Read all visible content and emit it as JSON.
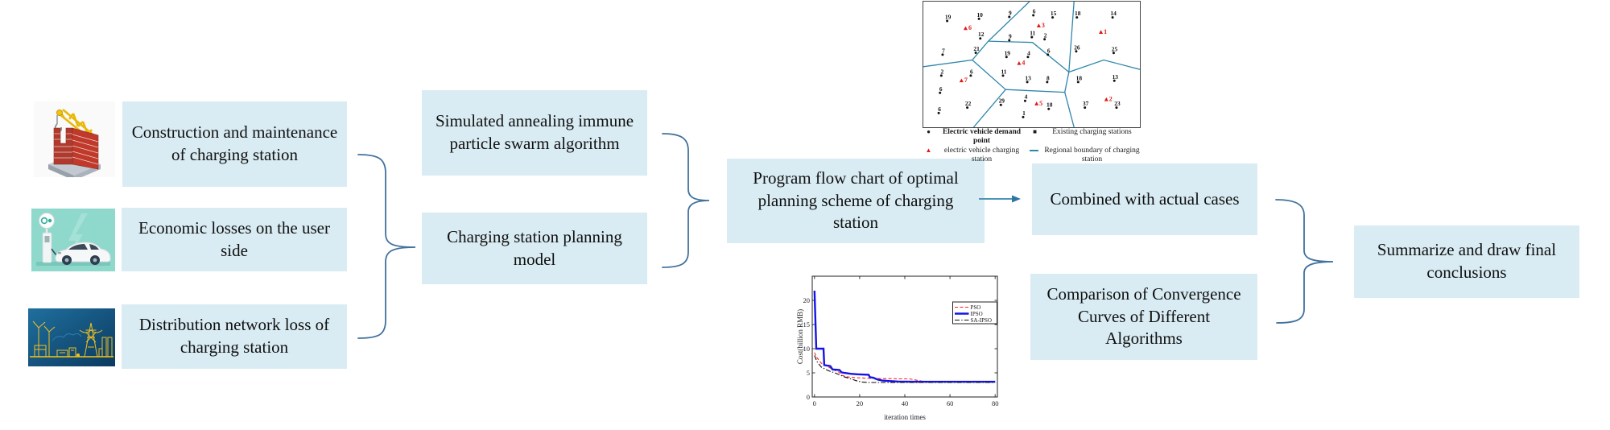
{
  "flow": {
    "construction": "Construction and maintenance of charging station",
    "economic": "Economic losses on the user side",
    "distribution": "Distribution network loss of charging station",
    "algorithm": "Simulated annealing immune particle swarm algorithm",
    "model": "Charging station planning model",
    "program": "Program flow chart of optimal planning scheme of charging station",
    "cases": "Combined with actual cases",
    "comparison": "Comparison of Convergence Curves of Different Algorithms",
    "summarize": "Summarize and draw final conclusions"
  },
  "colors": {
    "box_fill": "#d9ecf3",
    "brace": "#41719c",
    "arrow": "#4d94bb",
    "map_boundary": "#2e86ab",
    "station_red": "#e01818",
    "demand_black": "#111111"
  },
  "map": {
    "legend": {
      "demand": "Electric vehicle demand point",
      "existing": "Existing charging stations",
      "station": "electric vehicle charging station",
      "boundary": "Regional boundary of charging station",
      "markers": {
        "demand": "●",
        "existing": "■",
        "station": "▲"
      }
    },
    "demand_points": [
      [
        11.0,
        15.4,
        "19"
      ],
      [
        25.7,
        13.7,
        "10"
      ],
      [
        39.7,
        12.2,
        "9"
      ],
      [
        50.8,
        10.9,
        "6"
      ],
      [
        59.7,
        12.6,
        "15"
      ],
      [
        70.9,
        12.6,
        "18"
      ],
      [
        87.4,
        12.6,
        "14"
      ],
      [
        26.3,
        29.3,
        "12"
      ],
      [
        39.7,
        30.8,
        "9"
      ],
      [
        50.1,
        28.3,
        "11"
      ],
      [
        56.0,
        30.0,
        "2"
      ],
      [
        8.9,
        42.2,
        "7"
      ],
      [
        24.2,
        40.7,
        "21"
      ],
      [
        38.4,
        44.1,
        "19"
      ],
      [
        48.3,
        44.1,
        "4"
      ],
      [
        57.5,
        42.2,
        "6"
      ],
      [
        70.6,
        39.6,
        "26"
      ],
      [
        87.9,
        40.9,
        "25"
      ],
      [
        8.3,
        58.9,
        "2"
      ],
      [
        21.9,
        58.9,
        "6"
      ],
      [
        36.8,
        58.9,
        "11"
      ],
      [
        48.0,
        64.0,
        "13"
      ],
      [
        57.2,
        64.0,
        "8"
      ],
      [
        71.5,
        64.0,
        "18"
      ],
      [
        88.2,
        63.0,
        "13"
      ],
      [
        7.7,
        72.6,
        "6"
      ],
      [
        20.3,
        84.4,
        "22"
      ],
      [
        35.8,
        82.2,
        "29"
      ],
      [
        47.0,
        79.0,
        "4"
      ],
      [
        57.9,
        85.4,
        "18"
      ],
      [
        74.6,
        84.4,
        "37"
      ],
      [
        89.2,
        84.4,
        "23"
      ],
      [
        7.1,
        88.7,
        "6"
      ],
      [
        46.1,
        91.9,
        "1"
      ]
    ],
    "charging_stations": [
      [
        19.5,
        21.4,
        "6"
      ],
      [
        53.3,
        19.3,
        "3"
      ],
      [
        82.0,
        24.4,
        "1"
      ],
      [
        44.2,
        49.2,
        "4"
      ],
      [
        17.6,
        63.0,
        "7"
      ],
      [
        52.3,
        81.4,
        "5"
      ],
      [
        84.5,
        78.0,
        "2"
      ]
    ],
    "boundaries": [
      [
        [
          49,
          0
        ],
        [
          30,
          31.5
        ],
        [
          22.6,
          46.5
        ],
        [
          0,
          51.8
        ]
      ],
      [
        [
          30,
          31.5
        ],
        [
          50.4,
          32.5
        ],
        [
          67.2,
          56.1
        ]
      ],
      [
        [
          22.6,
          46.5
        ],
        [
          38.0,
          70.0
        ]
      ],
      [
        [
          38.0,
          70.0
        ],
        [
          23.2,
          100
        ]
      ],
      [
        [
          38.0,
          70.0
        ],
        [
          65.3,
          72.2
        ]
      ],
      [
        [
          65.3,
          72.2
        ],
        [
          69.6,
          100
        ]
      ],
      [
        [
          65.3,
          72.2
        ],
        [
          67.2,
          56.1
        ]
      ],
      [
        [
          67.2,
          56.1
        ],
        [
          69.6,
          0
        ]
      ],
      [
        [
          67.2,
          56.1
        ],
        [
          83.3,
          46.5
        ],
        [
          100,
          54
        ]
      ]
    ]
  },
  "chart_data": {
    "type": "line",
    "title": "",
    "xlabel": "iteration times",
    "ylabel": "Cost(billion RMB)",
    "xlim": [
      -1,
      81
    ],
    "ylim": [
      0,
      25
    ],
    "xticks": [
      0,
      20,
      40,
      60,
      80
    ],
    "yticks": [
      0,
      5,
      10,
      15,
      20
    ],
    "grid": false,
    "legend_position": "top-right",
    "series": [
      {
        "name": "PSO",
        "color": "#ff2020",
        "style": "dashed",
        "width": 1.1,
        "points": [
          [
            0,
            9.2
          ],
          [
            1,
            8.2
          ],
          [
            2,
            7.6
          ],
          [
            3,
            7.0
          ],
          [
            5,
            6.5
          ],
          [
            7,
            6.0
          ],
          [
            9,
            5.5
          ],
          [
            11,
            5.1
          ],
          [
            12,
            4.5
          ],
          [
            14,
            4.2
          ],
          [
            16,
            4.1
          ],
          [
            18,
            4.0
          ],
          [
            22,
            3.9
          ],
          [
            26,
            3.85
          ],
          [
            30,
            3.8
          ],
          [
            34,
            3.8
          ],
          [
            38,
            3.75
          ],
          [
            42,
            3.75
          ],
          [
            44,
            3.6
          ],
          [
            46,
            3.4
          ],
          [
            48,
            3.25
          ],
          [
            52,
            3.2
          ],
          [
            60,
            3.2
          ],
          [
            70,
            3.2
          ],
          [
            80,
            3.2
          ]
        ]
      },
      {
        "name": "IPSO",
        "color": "#1414e6",
        "style": "solid",
        "width": 2.4,
        "points": [
          [
            0,
            22
          ],
          [
            0.8,
            10
          ],
          [
            4,
            10
          ],
          [
            4.3,
            6.6
          ],
          [
            7,
            6.4
          ],
          [
            8,
            5.7
          ],
          [
            11,
            5.6
          ],
          [
            12,
            5.1
          ],
          [
            13,
            5.0
          ],
          [
            16,
            4.8
          ],
          [
            19,
            4.7
          ],
          [
            24,
            4.6
          ],
          [
            24.5,
            4.1
          ],
          [
            26,
            4.0
          ],
          [
            28,
            3.6
          ],
          [
            30,
            3.4
          ],
          [
            33,
            3.3
          ],
          [
            37,
            3.2
          ],
          [
            45,
            3.15
          ],
          [
            60,
            3.15
          ],
          [
            80,
            3.15
          ]
        ]
      },
      {
        "name": "SA-IPSO",
        "color": "#111111",
        "style": "dashdot",
        "width": 1.1,
        "points": [
          [
            0,
            8.6
          ],
          [
            1,
            7.4
          ],
          [
            2,
            6.8
          ],
          [
            3,
            6.2
          ],
          [
            5,
            5.7
          ],
          [
            7,
            5.3
          ],
          [
            9,
            5.0
          ],
          [
            11,
            4.6
          ],
          [
            13,
            4.2
          ],
          [
            15,
            3.9
          ],
          [
            17,
            3.6
          ],
          [
            19,
            3.3
          ],
          [
            21,
            3.1
          ],
          [
            24,
            3.0
          ],
          [
            30,
            3.0
          ],
          [
            40,
            3.0
          ],
          [
            50,
            3.0
          ],
          [
            60,
            3.0
          ],
          [
            70,
            3.0
          ],
          [
            80,
            3.0
          ]
        ]
      }
    ]
  }
}
